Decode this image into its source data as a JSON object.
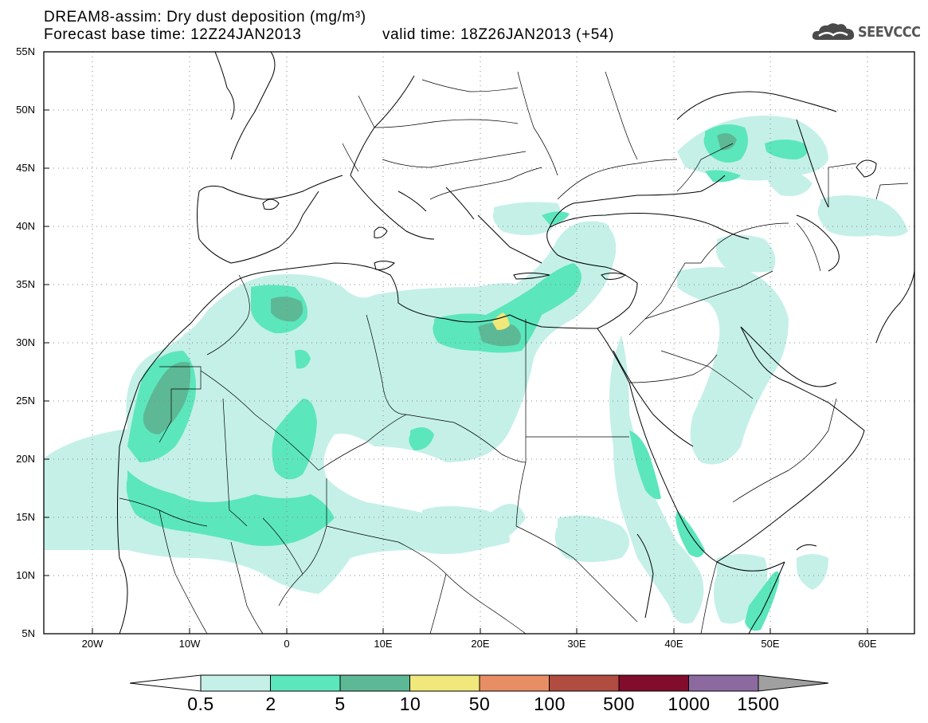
{
  "title": {
    "line1": "DREAM8-assim: Dry dust deposition (mg/m³)",
    "line2": "Forecast base time: 12Z24JAN2013",
    "valid": "valid time: 18Z26JAN2013 (+54)"
  },
  "logo": {
    "icon": "cloud-icon",
    "text": "SEEVCCC"
  },
  "map": {
    "lon_range": [
      -25,
      65
    ],
    "lat_range": [
      5,
      55
    ],
    "grid": true,
    "lat_labels": [
      "55N",
      "50N",
      "45N",
      "40N",
      "35N",
      "30N",
      "25N",
      "20N",
      "15N",
      "10N",
      "5N"
    ],
    "lon_labels": [
      "20W",
      "10W",
      "0",
      "10E",
      "20E",
      "30E",
      "40E",
      "50E",
      "60E"
    ]
  },
  "colorbar": {
    "labels": [
      "0.5",
      "2",
      "5",
      "10",
      "50",
      "100",
      "500",
      "1000",
      "1500"
    ],
    "colors": [
      "#c4f0e8",
      "#5ce6bc",
      "#5db896",
      "#f0e87a",
      "#e88e64",
      "#b04c40",
      "#820c2c",
      "#8c6aa0",
      "#a0a0a0"
    ]
  }
}
